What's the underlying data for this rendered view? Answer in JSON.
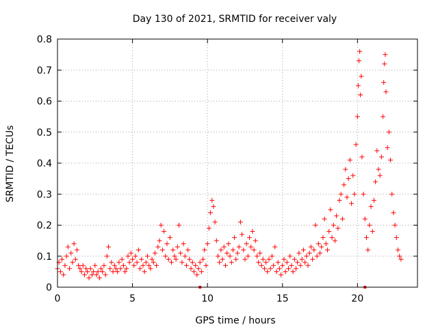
{
  "chart_data": {
    "type": "scatter",
    "title": "Day 130 of 2021, SRMTID for receiver valy",
    "xlabel": "GPS time / hours",
    "ylabel": "SRMTID / TECUs",
    "xlim": [
      0,
      24
    ],
    "ylim": [
      0,
      0.8
    ],
    "xticks": [
      0,
      5,
      10,
      15,
      20
    ],
    "yticks": [
      0,
      0.1,
      0.2,
      0.3,
      0.4,
      0.5,
      0.6,
      0.7,
      0.8
    ],
    "xtick_labels": [
      "0",
      "5",
      "10",
      "15",
      "20"
    ],
    "ytick_labels": [
      "0",
      "0.1",
      "0.2",
      "0.3",
      "0.4",
      "0.5",
      "0.6",
      "0.7",
      "0.8"
    ],
    "grid": true,
    "marker": "+",
    "color": "#ff0000",
    "series": [
      {
        "name": "SRMTID",
        "points": [
          [
            0.0,
            0.06
          ],
          [
            0.1,
            0.08
          ],
          [
            0.2,
            0.05
          ],
          [
            0.3,
            0.09
          ],
          [
            0.4,
            0.04
          ],
          [
            0.5,
            0.07
          ],
          [
            0.6,
            0.1
          ],
          [
            0.7,
            0.13
          ],
          [
            0.8,
            0.06
          ],
          [
            0.9,
            0.11
          ],
          [
            1.0,
            0.08
          ],
          [
            1.1,
            0.14
          ],
          [
            1.2,
            0.09
          ],
          [
            1.3,
            0.12
          ],
          [
            1.4,
            0.07
          ],
          [
            1.5,
            0.06
          ],
          [
            1.6,
            0.05
          ],
          [
            1.7,
            0.07
          ],
          [
            1.8,
            0.04
          ],
          [
            1.9,
            0.06
          ],
          [
            2.0,
            0.05
          ],
          [
            2.1,
            0.03
          ],
          [
            2.2,
            0.06
          ],
          [
            2.3,
            0.04
          ],
          [
            2.4,
            0.05
          ],
          [
            2.5,
            0.07
          ],
          [
            2.6,
            0.04
          ],
          [
            2.7,
            0.05
          ],
          [
            2.8,
            0.03
          ],
          [
            2.9,
            0.06
          ],
          [
            3.0,
            0.05
          ],
          [
            3.1,
            0.07
          ],
          [
            3.2,
            0.04
          ],
          [
            3.3,
            0.1
          ],
          [
            3.4,
            0.13
          ],
          [
            3.5,
            0.06
          ],
          [
            3.6,
            0.08
          ],
          [
            3.7,
            0.05
          ],
          [
            3.8,
            0.07
          ],
          [
            3.9,
            0.06
          ],
          [
            4.0,
            0.05
          ],
          [
            4.1,
            0.08
          ],
          [
            4.2,
            0.06
          ],
          [
            4.3,
            0.09
          ],
          [
            4.4,
            0.07
          ],
          [
            4.5,
            0.05
          ],
          [
            4.6,
            0.06
          ],
          [
            4.7,
            0.1
          ],
          [
            4.8,
            0.08
          ],
          [
            4.9,
            0.11
          ],
          [
            5.0,
            0.09
          ],
          [
            5.1,
            0.07
          ],
          [
            5.2,
            0.1
          ],
          [
            5.3,
            0.08
          ],
          [
            5.4,
            0.12
          ],
          [
            5.5,
            0.06
          ],
          [
            5.6,
            0.09
          ],
          [
            5.7,
            0.07
          ],
          [
            5.8,
            0.05
          ],
          [
            5.9,
            0.08
          ],
          [
            6.0,
            0.1
          ],
          [
            6.1,
            0.07
          ],
          [
            6.2,
            0.06
          ],
          [
            6.3,
            0.09
          ],
          [
            6.4,
            0.08
          ],
          [
            6.5,
            0.11
          ],
          [
            6.6,
            0.07
          ],
          [
            6.7,
            0.13
          ],
          [
            6.8,
            0.15
          ],
          [
            6.9,
            0.2
          ],
          [
            7.0,
            0.12
          ],
          [
            7.1,
            0.18
          ],
          [
            7.2,
            0.1
          ],
          [
            7.3,
            0.14
          ],
          [
            7.4,
            0.09
          ],
          [
            7.5,
            0.16
          ],
          [
            7.6,
            0.08
          ],
          [
            7.7,
            0.12
          ],
          [
            7.8,
            0.1
          ],
          [
            7.9,
            0.09
          ],
          [
            8.0,
            0.13
          ],
          [
            8.1,
            0.2
          ],
          [
            8.2,
            0.11
          ],
          [
            8.3,
            0.08
          ],
          [
            8.4,
            0.14
          ],
          [
            8.5,
            0.1
          ],
          [
            8.6,
            0.07
          ],
          [
            8.7,
            0.12
          ],
          [
            8.8,
            0.09
          ],
          [
            8.9,
            0.06
          ],
          [
            9.0,
            0.08
          ],
          [
            9.1,
            0.05
          ],
          [
            9.2,
            0.07
          ],
          [
            9.3,
            0.04
          ],
          [
            9.4,
            0.06
          ],
          [
            9.5,
            0.08
          ],
          [
            9.6,
            0.05
          ],
          [
            9.7,
            0.09
          ],
          [
            9.8,
            0.12
          ],
          [
            9.9,
            0.07
          ],
          [
            10.0,
            0.14
          ],
          [
            10.1,
            0.19
          ],
          [
            10.2,
            0.24
          ],
          [
            10.3,
            0.28
          ],
          [
            10.4,
            0.26
          ],
          [
            10.5,
            0.21
          ],
          [
            10.6,
            0.15
          ],
          [
            10.7,
            0.1
          ],
          [
            10.8,
            0.08
          ],
          [
            10.9,
            0.12
          ],
          [
            11.0,
            0.09
          ],
          [
            11.1,
            0.13
          ],
          [
            11.2,
            0.07
          ],
          [
            11.3,
            0.11
          ],
          [
            11.4,
            0.14
          ],
          [
            11.5,
            0.1
          ],
          [
            11.6,
            0.08
          ],
          [
            11.7,
            0.12
          ],
          [
            11.8,
            0.16
          ],
          [
            11.9,
            0.09
          ],
          [
            12.0,
            0.11
          ],
          [
            12.1,
            0.13
          ],
          [
            12.2,
            0.21
          ],
          [
            12.3,
            0.17
          ],
          [
            12.4,
            0.12
          ],
          [
            12.5,
            0.09
          ],
          [
            12.6,
            0.14
          ],
          [
            12.7,
            0.1
          ],
          [
            12.8,
            0.16
          ],
          [
            12.9,
            0.13
          ],
          [
            13.0,
            0.18
          ],
          [
            13.1,
            0.12
          ],
          [
            13.2,
            0.15
          ],
          [
            13.3,
            0.1
          ],
          [
            13.4,
            0.08
          ],
          [
            13.5,
            0.11
          ],
          [
            13.6,
            0.07
          ],
          [
            13.7,
            0.09
          ],
          [
            13.8,
            0.06
          ],
          [
            13.9,
            0.08
          ],
          [
            14.0,
            0.05
          ],
          [
            14.1,
            0.09
          ],
          [
            14.2,
            0.06
          ],
          [
            14.3,
            0.1
          ],
          [
            14.4,
            0.07
          ],
          [
            14.5,
            0.13
          ],
          [
            14.6,
            0.05
          ],
          [
            14.7,
            0.08
          ],
          [
            14.8,
            0.06
          ],
          [
            14.9,
            0.04
          ],
          [
            15.0,
            0.07
          ],
          [
            15.1,
            0.09
          ],
          [
            15.2,
            0.05
          ],
          [
            15.3,
            0.08
          ],
          [
            15.4,
            0.06
          ],
          [
            15.5,
            0.1
          ],
          [
            15.6,
            0.07
          ],
          [
            15.7,
            0.05
          ],
          [
            15.8,
            0.09
          ],
          [
            15.9,
            0.06
          ],
          [
            16.0,
            0.08
          ],
          [
            16.1,
            0.11
          ],
          [
            16.2,
            0.07
          ],
          [
            16.3,
            0.09
          ],
          [
            16.4,
            0.12
          ],
          [
            16.5,
            0.08
          ],
          [
            16.6,
            0.1
          ],
          [
            16.7,
            0.07
          ],
          [
            16.8,
            0.11
          ],
          [
            16.9,
            0.13
          ],
          [
            17.0,
            0.09
          ],
          [
            17.1,
            0.12
          ],
          [
            17.2,
            0.2
          ],
          [
            17.3,
            0.1
          ],
          [
            17.4,
            0.14
          ],
          [
            17.5,
            0.11
          ],
          [
            17.6,
            0.13
          ],
          [
            17.7,
            0.16
          ],
          [
            17.8,
            0.22
          ],
          [
            17.9,
            0.14
          ],
          [
            18.0,
            0.12
          ],
          [
            18.1,
            0.18
          ],
          [
            18.2,
            0.25
          ],
          [
            18.3,
            0.16
          ],
          [
            18.4,
            0.2
          ],
          [
            18.5,
            0.15
          ],
          [
            18.6,
            0.23
          ],
          [
            18.7,
            0.19
          ],
          [
            18.8,
            0.28
          ],
          [
            18.9,
            0.3
          ],
          [
            19.0,
            0.22
          ],
          [
            19.1,
            0.33
          ],
          [
            19.2,
            0.38
          ],
          [
            19.3,
            0.29
          ],
          [
            19.4,
            0.35
          ],
          [
            19.5,
            0.41
          ],
          [
            19.6,
            0.27
          ],
          [
            19.7,
            0.36
          ],
          [
            19.8,
            0.3
          ],
          [
            19.9,
            0.46
          ],
          [
            20.0,
            0.55
          ],
          [
            20.05,
            0.65
          ],
          [
            20.1,
            0.73
          ],
          [
            20.15,
            0.76
          ],
          [
            20.2,
            0.62
          ],
          [
            20.25,
            0.68
          ],
          [
            20.3,
            0.42
          ],
          [
            20.4,
            0.3
          ],
          [
            20.5,
            0.22
          ],
          [
            20.6,
            0.16
          ],
          [
            20.7,
            0.12
          ],
          [
            20.8,
            0.2
          ],
          [
            20.9,
            0.26
          ],
          [
            21.0,
            0.18
          ],
          [
            21.1,
            0.28
          ],
          [
            21.2,
            0.34
          ],
          [
            21.3,
            0.44
          ],
          [
            21.4,
            0.38
          ],
          [
            21.5,
            0.36
          ],
          [
            21.6,
            0.42
          ],
          [
            21.7,
            0.55
          ],
          [
            21.75,
            0.66
          ],
          [
            21.8,
            0.72
          ],
          [
            21.85,
            0.75
          ],
          [
            21.9,
            0.63
          ],
          [
            22.0,
            0.45
          ],
          [
            22.1,
            0.5
          ],
          [
            22.2,
            0.41
          ],
          [
            22.3,
            0.3
          ],
          [
            22.4,
            0.24
          ],
          [
            22.5,
            0.2
          ],
          [
            22.6,
            0.16
          ],
          [
            22.7,
            0.12
          ],
          [
            22.8,
            0.1
          ],
          [
            22.9,
            0.09
          ]
        ]
      }
    ],
    "zero_markers_x": [
      9.5,
      20.5
    ]
  }
}
